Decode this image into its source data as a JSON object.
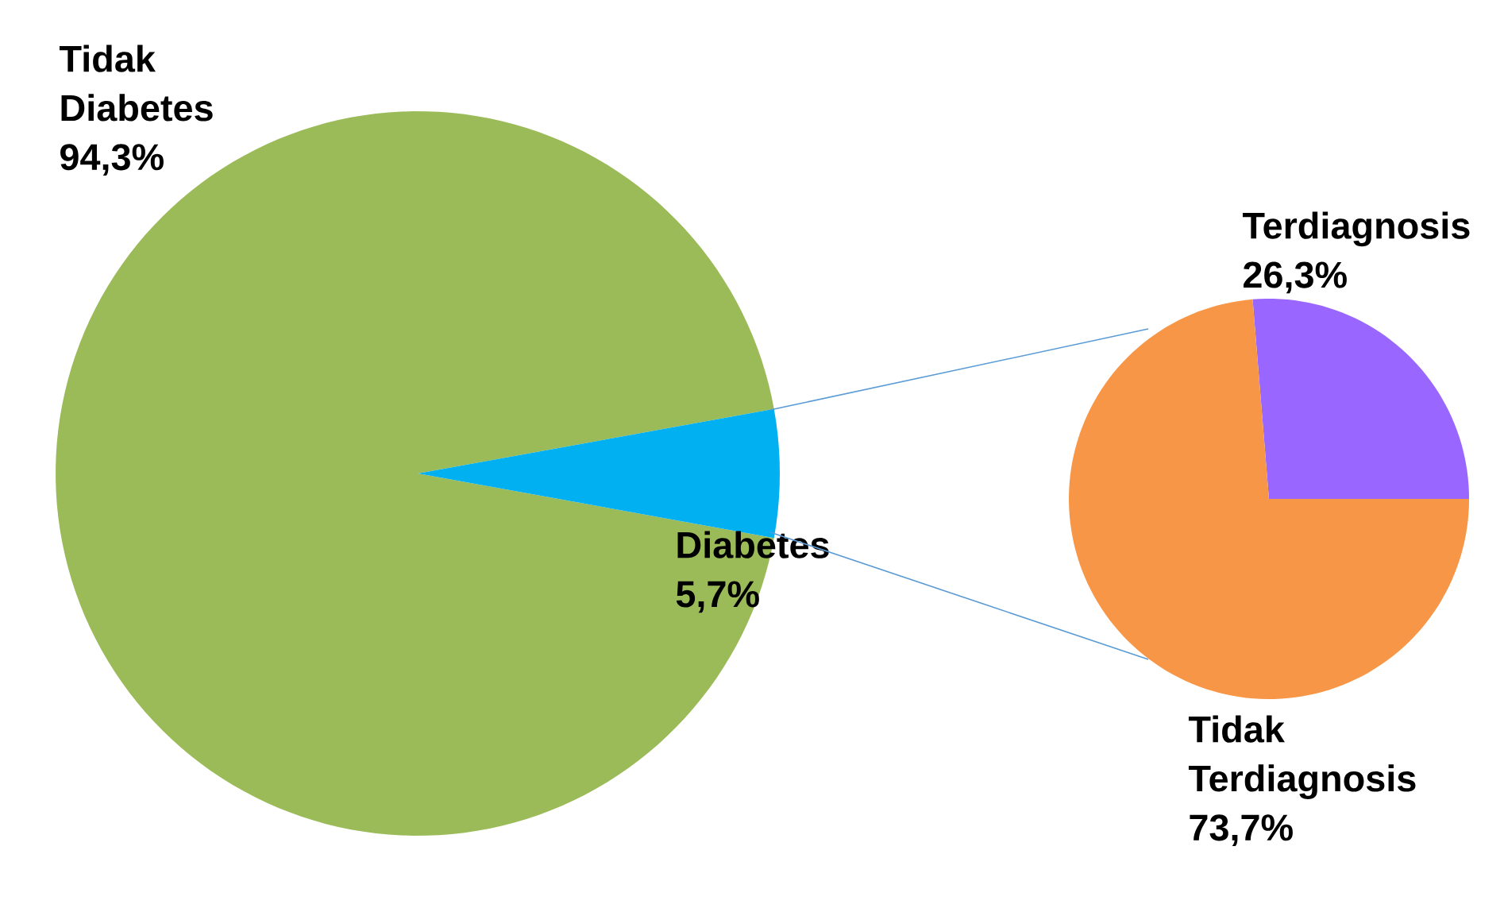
{
  "chart_data": [
    {
      "type": "pie",
      "categories": [
        "Tidak Diabetes",
        "Diabetes"
      ],
      "values": [
        94.3,
        5.7
      ],
      "value_labels": [
        "94,3%",
        "5,7%"
      ],
      "colors": [
        "#9bbb59",
        "#00b0f0"
      ]
    },
    {
      "type": "pie",
      "categories": [
        "Terdiagnosis",
        "Tidak Terdiagnosis"
      ],
      "values": [
        26.3,
        73.7
      ],
      "value_labels": [
        "26,3%",
        "73,7%"
      ],
      "colors": [
        "#9966ff",
        "#f79646"
      ]
    }
  ]
}
